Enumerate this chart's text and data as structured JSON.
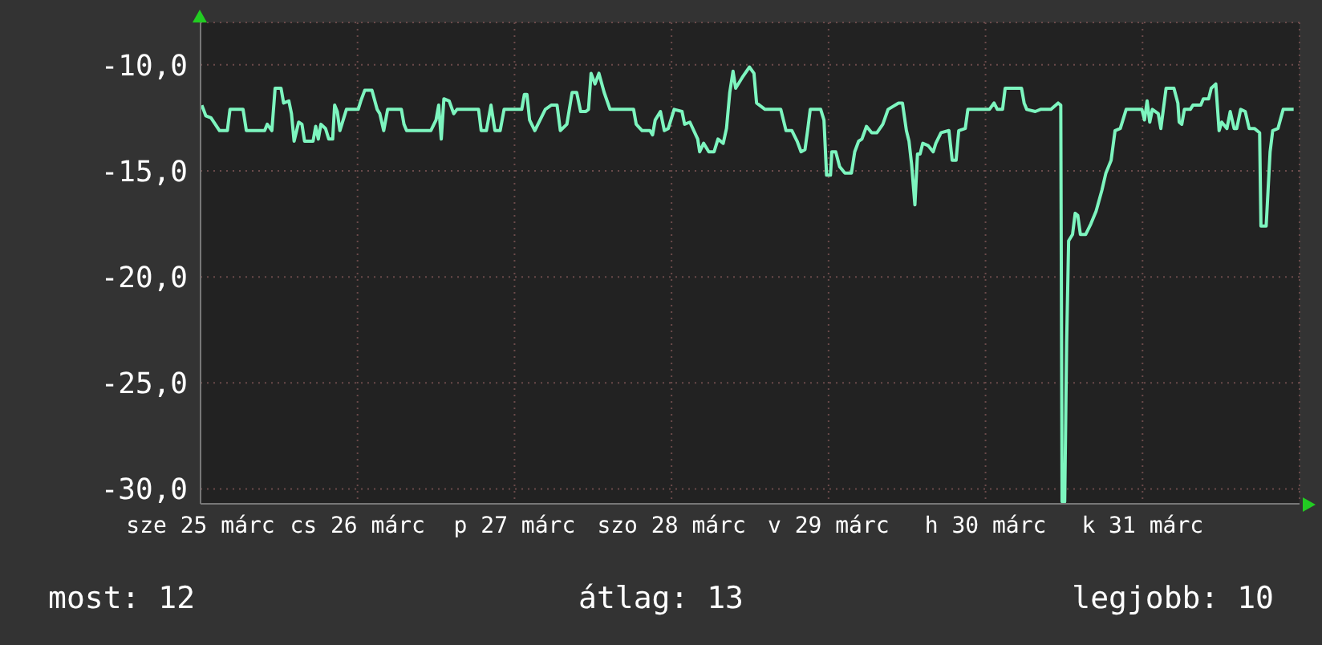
{
  "chart_data": {
    "type": "line",
    "x": [
      "--03-25T00:12",
      "--03-25T00:48",
      "--03-25T01:36",
      "--03-25T02:54",
      "--03-25T04:06",
      "--03-25T04:30",
      "--03-25T06:30",
      "--03-25T07:00",
      "--03-25T09:48",
      "--03-25T10:12",
      "--03-25T10:54",
      "--03-25T11:24",
      "--03-25T12:18",
      "--03-25T12:42",
      "--03-25T13:30",
      "--03-25T13:54",
      "--03-25T14:18",
      "--03-25T15:00",
      "--03-25T15:30",
      "--03-25T15:54",
      "--03-25T17:12",
      "--03-25T17:36",
      "--03-25T18:00",
      "--03-25T18:24",
      "--03-25T19:06",
      "--03-25T19:36",
      "--03-25T20:12",
      "--03-25T20:30",
      "--03-25T20:54",
      "--03-25T21:18",
      "--03-25T22:18",
      "--03-26T00:06",
      "--03-26T00:30",
      "--03-26T01:06",
      "--03-26T02:12",
      "--03-26T03:00",
      "--03-26T03:24",
      "--03-26T04:00",
      "--03-26T04:36",
      "--03-26T06:42",
      "--03-26T07:06",
      "--03-26T07:30",
      "--03-26T11:12",
      "--03-26T12:00",
      "--03-26T12:24",
      "--03-26T12:48",
      "--03-26T13:12",
      "--03-26T14:00",
      "--03-26T14:42",
      "--03-26T15:12",
      "--03-26T18:30",
      "--03-26T18:54",
      "--03-26T19:42",
      "--03-26T20:24",
      "--03-26T21:00",
      "--03-26T21:48",
      "--03-26T22:24",
      "--03-27T01:06",
      "--03-27T01:30",
      "--03-27T01:54",
      "--03-27T02:18",
      "--03-27T03:06",
      "--03-27T04:42",
      "--03-27T05:36",
      "--03-27T06:30",
      "--03-27T07:00",
      "--03-27T08:00",
      "--03-27T08:48",
      "--03-27T09:30",
      "--03-27T10:06",
      "--03-27T10:54",
      "--03-27T11:18",
      "--03-27T11:42",
      "--03-27T12:18",
      "--03-27T12:54",
      "--03-27T13:42",
      "--03-27T14:36",
      "--03-27T18:12",
      "--03-27T18:36",
      "--03-27T19:30",
      "--03-27T20:42",
      "--03-27T21:06",
      "--03-27T21:30",
      "--03-27T22:18",
      "--03-27T22:54",
      "--03-27T23:30",
      "--03-28T00:24",
      "--03-28T01:36",
      "--03-28T02:00",
      "--03-28T02:48",
      "--03-28T04:00",
      "--03-28T04:18",
      "--03-28T04:54",
      "--03-28T05:42",
      "--03-28T06:30",
      "--03-28T07:06",
      "--03-28T07:54",
      "--03-28T08:24",
      "--03-28T08:54",
      "--03-28T09:24",
      "--03-28T09:48",
      "--03-28T10:48",
      "--03-28T11:54",
      "--03-28T12:36",
      "--03-28T13:00",
      "--03-28T14:18",
      "--03-28T16:42",
      "--03-28T17:30",
      "--03-28T18:24",
      "--03-28T19:12",
      "--03-28T19:48",
      "--03-28T20:24",
      "--03-28T20:48",
      "--03-28T21:12",
      "--03-28T22:48",
      "--03-28T23:18",
      "--03-28T23:42",
      "--03-29T00:18",
      "--03-29T00:30",
      "--03-29T01:06",
      "--03-29T01:42",
      "--03-29T02:30",
      "--03-29T03:30",
      "--03-29T04:00",
      "--03-29T04:36",
      "--03-29T05:06",
      "--03-29T05:48",
      "--03-29T06:36",
      "--03-29T07:24",
      "--03-29T08:18",
      "--03-29T09:06",
      "--03-29T10:42",
      "--03-29T11:18",
      "--03-29T11:54",
      "--03-29T12:18",
      "--03-29T12:42",
      "--03-29T13:12",
      "--03-29T13:36",
      "--03-29T14:00",
      "--03-29T14:24",
      "--03-29T15:12",
      "--03-29T16:00",
      "--03-29T16:24",
      "--03-29T17:12",
      "--03-29T18:24",
      "--03-29T18:54",
      "--03-29T19:30",
      "--03-29T19:54",
      "--03-29T20:54",
      "--03-29T21:18",
      "--03-30T00:36",
      "--03-30T01:18",
      "--03-30T01:48",
      "--03-30T02:36",
      "--03-30T03:00",
      "--03-30T05:30",
      "--03-30T05:54",
      "--03-30T06:18",
      "--03-30T07:36",
      "--03-30T08:24",
      "--03-30T10:00",
      "--03-30T11:06",
      "--03-30T11:30",
      "--03-30T11:42",
      "--03-30T12:06",
      "--03-30T12:24",
      "--03-30T12:42",
      "--03-30T13:18",
      "--03-30T13:42",
      "--03-30T14:06",
      "--03-30T14:30",
      "--03-30T15:18",
      "--03-30T16:06",
      "--03-30T16:54",
      "--03-30T17:48",
      "--03-30T18:24",
      "--03-30T19:12",
      "--03-30T19:48",
      "--03-30T20:36",
      "--03-30T21:30",
      "--03-30T23:54",
      "--03-31T00:18",
      "--03-31T00:42",
      "--03-31T01:06",
      "--03-31T01:30",
      "--03-31T02:24",
      "--03-31T02:48",
      "--03-31T03:36",
      "--03-31T04:48",
      "--03-31T05:24",
      "--03-31T05:36",
      "--03-31T06:00",
      "--03-31T06:24",
      "--03-31T07:18",
      "--03-31T07:42",
      "--03-31T08:54",
      "--03-31T09:18",
      "--03-31T10:06",
      "--03-31T10:30",
      "--03-31T11:12",
      "--03-31T11:42",
      "--03-31T12:06",
      "--03-31T12:54",
      "--03-31T13:24",
      "--03-31T14:00",
      "--03-31T14:24",
      "--03-31T15:00",
      "--03-31T15:42",
      "--03-31T16:18",
      "--03-31T17:06",
      "--03-31T17:54",
      "--03-31T18:06",
      "--03-31T18:54",
      "--03-31T19:30",
      "--03-31T19:54",
      "--03-31T20:42",
      "--03-31T21:30",
      "--03-31T23:06"
    ],
    "series": [
      {
        "color": "#7df5bf",
        "values": [
          -11.9,
          -12.4,
          -12.5,
          -13.1,
          -13.1,
          -12.1,
          -12.1,
          -13.1,
          -13.1,
          -12.8,
          -13.1,
          -11.1,
          -11.1,
          -11.8,
          -11.7,
          -12.3,
          -13.6,
          -12.7,
          -12.8,
          -13.6,
          -13.6,
          -12.9,
          -13.5,
          -12.8,
          -13.0,
          -13.5,
          -13.5,
          -11.9,
          -12.2,
          -13.1,
          -12.1,
          -12.1,
          -11.7,
          -11.2,
          -11.2,
          -12.1,
          -12.3,
          -13.1,
          -12.1,
          -12.1,
          -12.8,
          -13.1,
          -13.1,
          -12.6,
          -11.9,
          -13.5,
          -11.6,
          -11.7,
          -12.3,
          -12.1,
          -12.1,
          -13.1,
          -13.1,
          -11.9,
          -13.1,
          -13.1,
          -12.1,
          -12.1,
          -11.4,
          -11.4,
          -12.6,
          -13.1,
          -12.1,
          -11.9,
          -11.9,
          -13.1,
          -12.8,
          -11.3,
          -11.3,
          -12.2,
          -12.2,
          -12.1,
          -10.4,
          -10.9,
          -10.4,
          -11.3,
          -12.1,
          -12.1,
          -12.8,
          -13.1,
          -13.1,
          -13.3,
          -12.6,
          -12.2,
          -13.1,
          -13.0,
          -12.1,
          -12.2,
          -12.8,
          -12.7,
          -13.5,
          -14.1,
          -13.7,
          -14.1,
          -14.1,
          -13.5,
          -13.7,
          -13.0,
          -11.3,
          -10.3,
          -11.1,
          -10.6,
          -10.1,
          -10.4,
          -11.8,
          -12.1,
          -12.1,
          -13.1,
          -13.1,
          -13.6,
          -14.1,
          -14.0,
          -13.1,
          -12.1,
          -12.1,
          -12.6,
          -15.2,
          -15.2,
          -14.1,
          -14.1,
          -14.8,
          -15.1,
          -15.1,
          -14.1,
          -13.6,
          -13.5,
          -12.9,
          -13.2,
          -13.2,
          -12.8,
          -12.1,
          -11.8,
          -11.8,
          -13.1,
          -13.6,
          -14.7,
          -16.6,
          -14.2,
          -14.2,
          -13.7,
          -13.8,
          -14.1,
          -13.7,
          -13.2,
          -13.1,
          -14.5,
          -14.5,
          -13.1,
          -13.0,
          -12.1,
          -12.1,
          -11.8,
          -12.1,
          -12.1,
          -11.1,
          -11.1,
          -11.8,
          -12.1,
          -12.2,
          -12.1,
          -12.1,
          -11.8,
          -11.9,
          -30.6,
          -30.6,
          -23.1,
          -18.3,
          -18.0,
          -17.0,
          -17.1,
          -18.0,
          -18.0,
          -17.5,
          -16.9,
          -15.9,
          -15.1,
          -14.5,
          -13.1,
          -13.0,
          -12.1,
          -12.1,
          -12.6,
          -11.7,
          -12.7,
          -12.1,
          -12.3,
          -13.0,
          -11.1,
          -11.1,
          -11.8,
          -12.7,
          -12.8,
          -12.1,
          -12.1,
          -11.9,
          -11.9,
          -11.6,
          -11.6,
          -11.1,
          -10.9,
          -13.1,
          -12.7,
          -13.0,
          -12.2,
          -13.0,
          -13.0,
          -12.1,
          -12.2,
          -13.0,
          -13.0,
          -13.2,
          -17.6,
          -17.6,
          -14.1,
          -13.1,
          -13.0,
          -12.1,
          -12.1
        ]
      }
    ],
    "xlim": [
      "--03-25T00:00",
      "--04-01T00:00"
    ],
    "xticks": [
      {
        "value": "--03-25",
        "label": "sze 25 márc"
      },
      {
        "value": "--03-26",
        "label": "cs 26 márc"
      },
      {
        "value": "--03-27",
        "label": "p 27 márc"
      },
      {
        "value": "--03-28",
        "label": "szo 28 márc"
      },
      {
        "value": "--03-29",
        "label": "v 29 márc"
      },
      {
        "value": "--03-30",
        "label": "h 30 márc"
      },
      {
        "value": "--03-31",
        "label": "k 31 márc"
      }
    ],
    "ylim": [
      -30.7,
      -8
    ],
    "yticks": [
      {
        "value": -30,
        "label": "-30,0"
      },
      {
        "value": -25,
        "label": "-25,0"
      },
      {
        "value": -20,
        "label": "-20,0"
      },
      {
        "value": -15,
        "label": "-15,0"
      },
      {
        "value": -10,
        "label": "-10,0"
      }
    ],
    "grid": true,
    "marker": "none",
    "line_style": "solid",
    "annotations": [
      "most: 12",
      "átlag: 13",
      "legjobb: 10"
    ]
  }
}
